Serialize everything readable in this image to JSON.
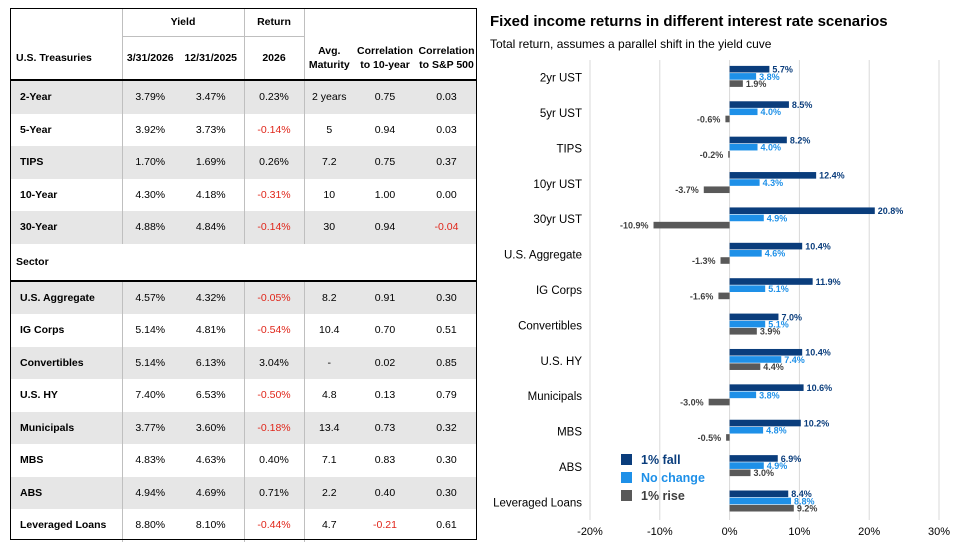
{
  "table": {
    "headers": {
      "yield_group": "Yield",
      "return_group": "Return",
      "first_col": "U.S. Treasuries",
      "date1": "3/31/2026",
      "date2": "12/31/2025",
      "return_year": "2026",
      "avg_maturity": [
        "Avg.",
        "Maturity"
      ],
      "corr_10yr": [
        "Correlation",
        "to 10-year"
      ],
      "corr_sp500": [
        "Correlation",
        "to S&P 500"
      ]
    },
    "sector_label": "Sector",
    "treasuries": [
      {
        "name": "2-Year",
        "y1": "3.79%",
        "y2": "3.47%",
        "ret": "0.23%",
        "mat": "2 years",
        "c10": "0.75",
        "csp": "0.03"
      },
      {
        "name": "5-Year",
        "y1": "3.92%",
        "y2": "3.73%",
        "ret": "-0.14%",
        "mat": "5",
        "c10": "0.94",
        "csp": "0.03"
      },
      {
        "name": "TIPS",
        "y1": "1.70%",
        "y2": "1.69%",
        "ret": "0.26%",
        "mat": "7.2",
        "c10": "0.75",
        "csp": "0.37"
      },
      {
        "name": "10-Year",
        "y1": "4.30%",
        "y2": "4.18%",
        "ret": "-0.31%",
        "mat": "10",
        "c10": "1.00",
        "csp": "0.00"
      },
      {
        "name": "30-Year",
        "y1": "4.88%",
        "y2": "4.84%",
        "ret": "-0.14%",
        "mat": "30",
        "c10": "0.94",
        "csp": "-0.04"
      }
    ],
    "sectors": [
      {
        "name": "U.S. Aggregate",
        "y1": "4.57%",
        "y2": "4.32%",
        "ret": "-0.05%",
        "mat": "8.2",
        "c10": "0.91",
        "csp": "0.30"
      },
      {
        "name": "IG Corps",
        "y1": "5.14%",
        "y2": "4.81%",
        "ret": "-0.54%",
        "mat": "10.4",
        "c10": "0.70",
        "csp": "0.51"
      },
      {
        "name": "Convertibles",
        "y1": "5.14%",
        "y2": "6.13%",
        "ret": "3.04%",
        "mat": "-",
        "c10": "0.02",
        "csp": "0.85"
      },
      {
        "name": "U.S. HY",
        "y1": "7.40%",
        "y2": "6.53%",
        "ret": "-0.50%",
        "mat": "4.8",
        "c10": "0.13",
        "csp": "0.79"
      },
      {
        "name": "Municipals",
        "y1": "3.77%",
        "y2": "3.60%",
        "ret": "-0.18%",
        "mat": "13.4",
        "c10": "0.73",
        "csp": "0.32"
      },
      {
        "name": "MBS",
        "y1": "4.83%",
        "y2": "4.63%",
        "ret": "0.40%",
        "mat": "7.1",
        "c10": "0.83",
        "csp": "0.30"
      },
      {
        "name": "ABS",
        "y1": "4.94%",
        "y2": "4.69%",
        "ret": "0.71%",
        "mat": "2.2",
        "c10": "0.40",
        "csp": "0.30"
      },
      {
        "name": "Leveraged Loans",
        "y1": "8.80%",
        "y2": "8.10%",
        "ret": "-0.44%",
        "mat": "4.7",
        "c10": "-0.21",
        "csp": "0.61"
      }
    ]
  },
  "chart_data": {
    "type": "bar",
    "orientation": "horizontal",
    "title": "Fixed income returns in different interest rate scenarios",
    "subtitle": "Total return, assumes a parallel shift in the yield cuve",
    "categories": [
      "2yr UST",
      "5yr UST",
      "TIPS",
      "10yr UST",
      "30yr UST",
      "U.S. Aggregate",
      "IG Corps",
      "Convertibles",
      "U.S. HY",
      "Municipals",
      "MBS",
      "ABS",
      "Leveraged Loans"
    ],
    "series": [
      {
        "name": "1% fall",
        "color": "#0a3d7c",
        "label_color": "#0a3d7c",
        "values": [
          5.7,
          8.5,
          8.2,
          12.4,
          20.8,
          10.4,
          11.9,
          7.0,
          10.4,
          10.6,
          10.2,
          6.9,
          8.4
        ]
      },
      {
        "name": "No change",
        "color": "#1e90e8",
        "label_color": "#1e90e8",
        "values": [
          3.8,
          4.0,
          4.0,
          4.3,
          4.9,
          4.6,
          5.1,
          5.1,
          7.4,
          3.8,
          4.8,
          4.9,
          8.8
        ]
      },
      {
        "name": "1% rise",
        "color": "#595959",
        "label_color": "#404040",
        "values": [
          1.9,
          -0.6,
          -0.2,
          -3.7,
          -10.9,
          -1.3,
          -1.6,
          3.9,
          4.4,
          -3.0,
          -0.5,
          3.0,
          9.2
        ]
      }
    ],
    "value_labels": [
      [
        "5.7%",
        "8.5%",
        "8.2%",
        "12.4%",
        "20.8%",
        "10.4%",
        "11.9%",
        "7.0%",
        "10.4%",
        "10.6%",
        "10.2%",
        "6.9%",
        "8.4%"
      ],
      [
        "3.8%",
        "4.0%",
        "4.0%",
        "4.3%",
        "4.9%",
        "4.6%",
        "5.1%",
        "5.1%",
        "7.4%",
        "3.8%",
        "4.8%",
        "4.9%",
        "8.8%"
      ],
      [
        "1.9%",
        "-0.6%",
        "-0.2%",
        "-3.7%",
        "-10.9%",
        "-1.3%",
        "-1.6%",
        "3.9%",
        "4.4%",
        "-3.0%",
        "-0.5%",
        "3.0%",
        "9.2%"
      ]
    ],
    "xlim": [
      -20,
      30
    ],
    "xticks": [
      -20,
      -10,
      0,
      10,
      20,
      30
    ],
    "xtick_labels": [
      "-20%",
      "-10%",
      "0%",
      "10%",
      "20%",
      "30%"
    ],
    "legend_position": "bottom-left",
    "grid": true
  }
}
